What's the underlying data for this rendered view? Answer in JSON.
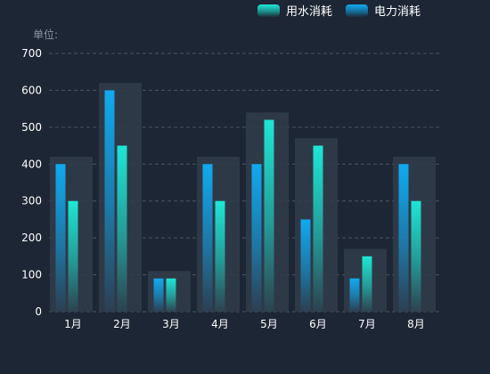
{
  "unit_label": "单位:",
  "chart_data": {
    "type": "bar",
    "categories": [
      "1月",
      "2月",
      "3月",
      "4月",
      "5月",
      "6月",
      "7月",
      "8月"
    ],
    "series": [
      {
        "name": "电力消耗",
        "values": [
          400,
          600,
          90,
          400,
          400,
          250,
          90,
          400
        ],
        "color": "#10aaf0"
      },
      {
        "name": "用水消耗",
        "values": [
          300,
          450,
          90,
          300,
          520,
          450,
          150,
          300
        ],
        "color": "#1de7d4"
      }
    ],
    "legend_order": [
      "用水消耗",
      "电力消耗"
    ],
    "background_bar_values": [
      420,
      620,
      110,
      420,
      540,
      470,
      170,
      420
    ],
    "ylim": [
      0,
      700
    ],
    "yticks": [
      0,
      100,
      200,
      300,
      400,
      500,
      600,
      700
    ],
    "grid": true,
    "legend_position": "top-right",
    "colors": {
      "background": "#1c2634",
      "grid": "#4a5566",
      "axis_text": "#ffffff",
      "unit_text": "#8c96a3",
      "shadow_bar": "#313c4a"
    }
  }
}
